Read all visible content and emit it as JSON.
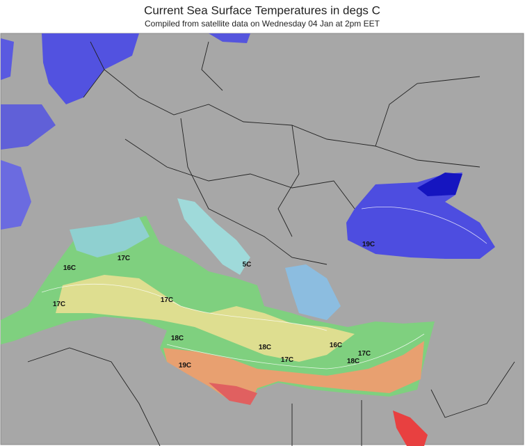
{
  "header": {
    "title": "Current Sea Surface Temperatures in degs C",
    "subtitle": "Compiled from satellite data on Wednesday 04 Jan at 2pm EET"
  },
  "map": {
    "contour_labels": [
      "16C",
      "17C",
      "17C",
      "17C",
      "18C",
      "19C",
      "18C",
      "17C",
      "16C",
      "17C",
      "18C",
      "5C",
      "19C"
    ]
  }
}
